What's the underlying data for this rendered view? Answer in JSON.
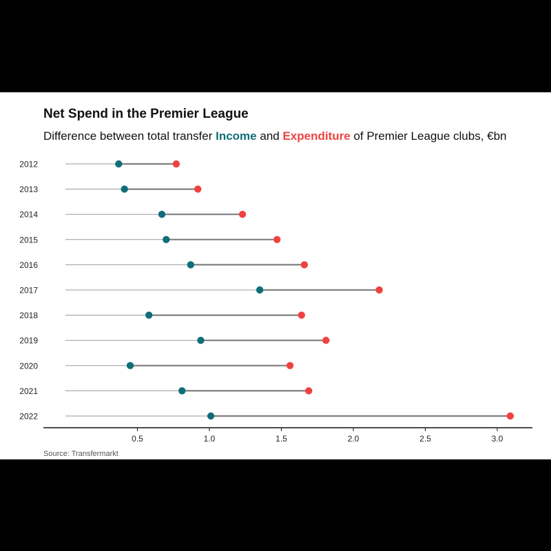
{
  "chart_data": {
    "type": "dumbbell",
    "title": "Net Spend in the Premier League",
    "subtitle": {
      "prefix": "Difference between total transfer ",
      "income_word": "Income",
      "middle": " and ",
      "expenditure_word": "Expenditure",
      "suffix": " of Premier League clubs, €bn"
    },
    "source": "Source: Transfermarkt",
    "categories": [
      "2012",
      "2013",
      "2014",
      "2015",
      "2016",
      "2017",
      "2018",
      "2019",
      "2020",
      "2021",
      "2022"
    ],
    "series": [
      {
        "name": "Income",
        "color": "#0f6e78",
        "values": [
          0.37,
          0.41,
          0.67,
          0.7,
          0.87,
          1.35,
          0.58,
          0.94,
          0.45,
          0.81,
          1.01
        ]
      },
      {
        "name": "Expenditure",
        "color": "#ef4240",
        "values": [
          0.77,
          0.92,
          1.23,
          1.47,
          1.66,
          2.18,
          1.64,
          1.81,
          1.56,
          1.69,
          3.09
        ]
      }
    ],
    "x_ticks": [
      0.5,
      1.0,
      1.5,
      2.0,
      2.5,
      3.0
    ],
    "x_tick_labels": [
      "0.5",
      "1.0",
      "1.5",
      "2.0",
      "2.5",
      "3.0"
    ],
    "xlim": [
      0,
      3.2
    ],
    "xlabel": "",
    "ylabel": "",
    "grid": false
  }
}
